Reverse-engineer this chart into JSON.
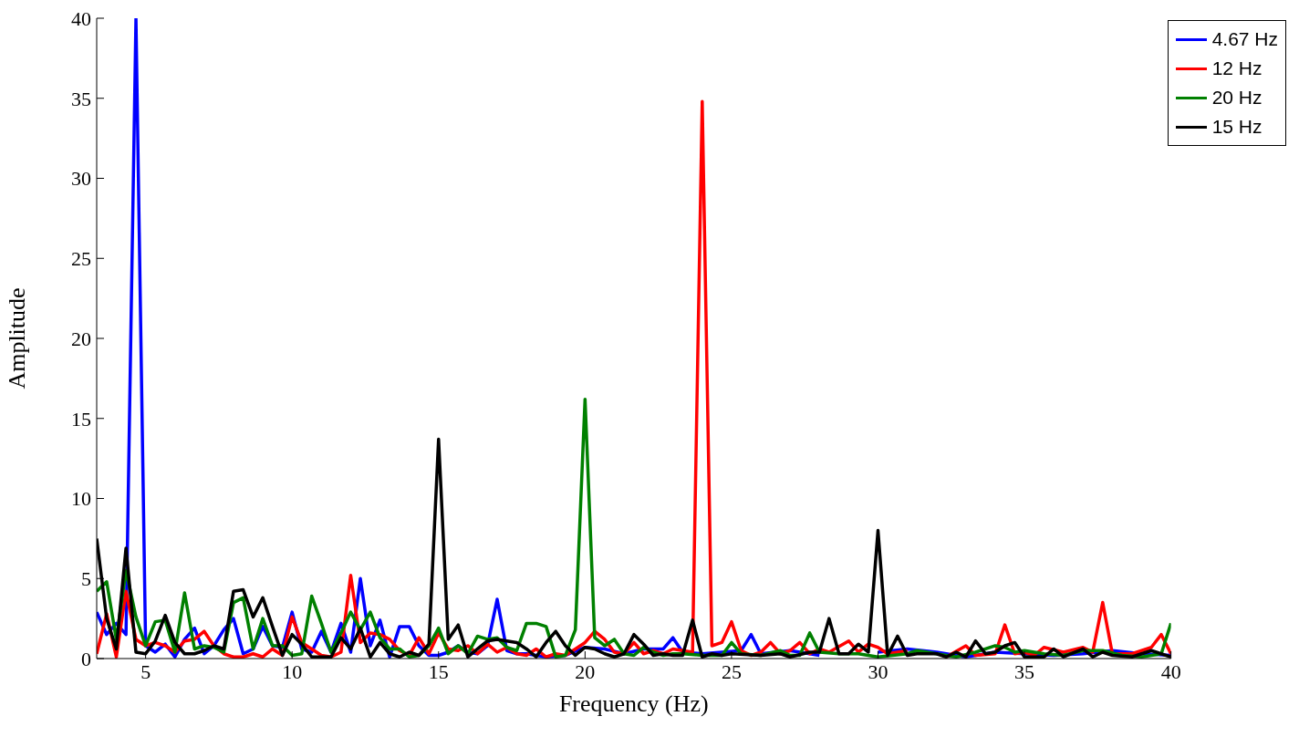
{
  "chart_data": {
    "type": "line",
    "xlabel": "Frequency (Hz)",
    "ylabel": "Amplitude",
    "xlim": [
      3.33,
      40
    ],
    "ylim": [
      0,
      40
    ],
    "xticks": [
      5,
      10,
      15,
      20,
      25,
      30,
      35,
      40
    ],
    "yticks": [
      0,
      5,
      10,
      15,
      20,
      25,
      30,
      35,
      40
    ],
    "grid": false,
    "legend": "top right",
    "marker": "none",
    "line_style": "solid",
    "series": [
      {
        "name": "4.67 Hz",
        "color": "#0000ff",
        "x": [
          3.33,
          3.67,
          4.0,
          4.33,
          4.67,
          5.0,
          5.33,
          5.67,
          6.0,
          6.33,
          6.67,
          7.0,
          7.33,
          7.67,
          8.0,
          8.33,
          8.67,
          9.0,
          9.33,
          9.67,
          10.0,
          10.33,
          10.67,
          11.0,
          11.33,
          11.67,
          12.0,
          12.33,
          12.67,
          13.0,
          13.33,
          13.67,
          14.0,
          14.33,
          14.67,
          15.0,
          15.33,
          15.67,
          16.0,
          16.33,
          16.67,
          17.0,
          17.33,
          17.67,
          18.0,
          18.67,
          19.33,
          20.0,
          20.67,
          21.33,
          22.0,
          22.67,
          23.0,
          23.33,
          24.0,
          24.67,
          25.33,
          25.67,
          26.0,
          27,
          28,
          29,
          30,
          31,
          32,
          33,
          34,
          35,
          36,
          37,
          38,
          39,
          40
        ],
        "values": [
          2.9,
          1.5,
          2.2,
          1.5,
          40,
          0.8,
          0.4,
          0.9,
          0.1,
          1.2,
          1.9,
          0.3,
          0.8,
          1.8,
          2.5,
          0.3,
          0.6,
          2.0,
          0.8,
          0.7,
          2.9,
          0.6,
          0.4,
          1.7,
          0.4,
          2.2,
          0.4,
          5.0,
          0.8,
          2.4,
          0.1,
          2.0,
          2.0,
          0.8,
          0.2,
          0.2,
          0.4,
          0.8,
          0.4,
          0.3,
          0.8,
          3.7,
          0.5,
          0.3,
          0.3,
          0.1,
          0.2,
          0.7,
          0.6,
          0.3,
          0.6,
          0.6,
          1.3,
          0.4,
          0.3,
          0.4,
          0.5,
          1.5,
          0.3,
          0.5,
          0.2,
          null,
          0.4,
          0.6,
          0.4,
          0.1,
          0.4,
          0.3,
          0.2,
          0.3,
          0.5,
          0.3,
          0.2
        ]
      },
      {
        "name": "12 Hz",
        "color": "#ff0000",
        "x": [
          3.33,
          3.67,
          4.0,
          4.33,
          4.67,
          5.0,
          5.33,
          5.67,
          6.0,
          6.33,
          6.67,
          7.0,
          7.33,
          7.67,
          8.0,
          8.33,
          8.67,
          9.0,
          9.33,
          9.67,
          10.0,
          10.33,
          10.67,
          11.0,
          11.33,
          11.67,
          12.0,
          12.33,
          12.67,
          13.0,
          13.33,
          13.67,
          14.0,
          14.33,
          14.67,
          15.0,
          15.33,
          15.67,
          16.0,
          16.33,
          16.67,
          17.0,
          17.33,
          17.67,
          18.0,
          18.33,
          18.67,
          19.0,
          19.33,
          19.67,
          20.0,
          20.33,
          20.67,
          21.0,
          21.33,
          21.67,
          22.0,
          22.33,
          22.67,
          23.0,
          23.33,
          23.67,
          24.0,
          24.33,
          24.67,
          25.0,
          25.33,
          25.67,
          26.0,
          26.33,
          26.67,
          27.0,
          27.33,
          27.67,
          28.0,
          28.33,
          29.0,
          29.33,
          29.67,
          30.0,
          30.33,
          31,
          31.67,
          32.33,
          33.0,
          33.33,
          34.0,
          34.33,
          34.67,
          35,
          35.33,
          35.67,
          36.33,
          37.0,
          37.33,
          37.67,
          38.0,
          38.67,
          39.33,
          39.67,
          40
        ],
        "values": [
          0.3,
          2.8,
          0.1,
          4.2,
          1.2,
          0.8,
          1.0,
          0.8,
          0.4,
          1.1,
          1.2,
          1.7,
          0.8,
          0.3,
          0.1,
          0.1,
          0.3,
          0.1,
          0.6,
          0.2,
          2.6,
          1.0,
          0.6,
          0.2,
          0.1,
          0.4,
          5.2,
          1.0,
          1.6,
          1.5,
          1.2,
          0.5,
          0.2,
          1.3,
          0.3,
          1.6,
          0.6,
          0.5,
          0.8,
          0.3,
          0.9,
          0.4,
          0.7,
          0.3,
          0.2,
          0.6,
          0.1,
          0.3,
          0.2,
          0.6,
          1.0,
          1.7,
          1.2,
          0.4,
          0.3,
          1.0,
          0.3,
          0.5,
          0.3,
          0.6,
          0.5,
          0.4,
          34.8,
          0.8,
          1.0,
          2.3,
          0.5,
          0.2,
          0.4,
          1.0,
          0.3,
          0.5,
          1.0,
          0.3,
          0.6,
          0.4,
          1.1,
          0.4,
          0.9,
          0.7,
          0.3,
          0.5,
          null,
          0.1,
          0.8,
          0.2,
          0.3,
          2.1,
          0.3,
          0.4,
          0.2,
          0.7,
          0.4,
          0.7,
          0.4,
          3.5,
          0.3,
          0.3,
          0.7,
          1.5,
          0.3
        ]
      },
      {
        "name": "20 Hz",
        "color": "#008000",
        "x": [
          3.33,
          3.67,
          4.0,
          4.33,
          4.67,
          5.0,
          5.33,
          5.67,
          6.0,
          6.33,
          6.67,
          7.0,
          7.33,
          7.67,
          8.0,
          8.33,
          8.67,
          9.0,
          9.33,
          9.67,
          10.0,
          10.33,
          10.67,
          11.0,
          11.33,
          11.67,
          12.0,
          12.33,
          12.67,
          13.0,
          13.33,
          13.67,
          14.0,
          14.33,
          14.67,
          15.0,
          15.33,
          15.67,
          16.0,
          16.33,
          16.67,
          17.0,
          17.33,
          17.67,
          18.0,
          18.33,
          18.67,
          19.0,
          19.33,
          19.67,
          20.0,
          20.33,
          20.67,
          21.0,
          21.33,
          21.67,
          22.0,
          22.33,
          22.67,
          23.0,
          23.33,
          24,
          24.67,
          25.0,
          25.33,
          26,
          26.67,
          27.0,
          27.33,
          27.67,
          28.0,
          28.67,
          29.33,
          30,
          31,
          31.33,
          32,
          32.67,
          33.33,
          34.0,
          34.33,
          34.67,
          35.0,
          35.67,
          36.33,
          37.0,
          37.67,
          38.33,
          39.0,
          39.67,
          40
        ],
        "values": [
          4.2,
          4.8,
          1.2,
          5.5,
          2.6,
          0.8,
          2.3,
          2.4,
          0.4,
          4.1,
          0.6,
          0.8,
          0.7,
          0.4,
          3.5,
          3.8,
          0.6,
          2.5,
          0.8,
          0.8,
          0.2,
          0.3,
          3.9,
          2.2,
          0.4,
          1.6,
          2.9,
          1.8,
          2.9,
          1.3,
          0.6,
          0.6,
          0.1,
          0.2,
          0.8,
          1.9,
          0.3,
          0.8,
          0.3,
          1.4,
          1.2,
          1.3,
          0.7,
          0.5,
          2.2,
          2.2,
          2.0,
          0.1,
          0.2,
          1.8,
          16.2,
          1.3,
          0.8,
          1.2,
          0.3,
          0.2,
          0.7,
          0.4,
          0.2,
          0.3,
          0.3,
          0.2,
          0.2,
          1.0,
          0.3,
          0.2,
          0.5,
          0.2,
          0.2,
          1.6,
          0.4,
          0.3,
          0.3,
          0.1,
          0.3,
          0.5,
          0.3,
          0.1,
          0.4,
          0.8,
          0.7,
          0.4,
          0.5,
          0.3,
          0.2,
          0.5,
          0.5,
          0.2,
          0.1,
          0.3,
          2.2
        ]
      },
      {
        "name": "15 Hz",
        "color": "#000000",
        "x": [
          3.33,
          3.67,
          4.0,
          4.33,
          4.67,
          5.0,
          5.33,
          5.67,
          6.0,
          6.33,
          6.67,
          7.0,
          7.33,
          7.67,
          8.0,
          8.33,
          8.67,
          9.0,
          9.33,
          9.67,
          10.0,
          10.33,
          10.67,
          11.0,
          11.33,
          11.67,
          12.0,
          12.33,
          12.67,
          13.0,
          13.33,
          13.67,
          14.0,
          14.33,
          14.67,
          15.0,
          15.33,
          15.67,
          16.0,
          16.33,
          16.67,
          17.0,
          17.33,
          17.67,
          18.0,
          18.33,
          18.67,
          19.0,
          19.33,
          19.67,
          20.0,
          20.33,
          20.67,
          21.0,
          21.33,
          21.67,
          22.0,
          22.33,
          22.67,
          23.0,
          23.33,
          23.67,
          24.0,
          24.33,
          24.67,
          25,
          26,
          26.67,
          27,
          27.67,
          28.0,
          28.33,
          28.67,
          29.0,
          29.33,
          29.67,
          30.0,
          30.33,
          30.67,
          31.0,
          31.33,
          31.67,
          32.0,
          32.33,
          32.67,
          33.0,
          33.33,
          33.67,
          34.0,
          34.33,
          34.67,
          35.0,
          35.33,
          35.67,
          36.0,
          36.33,
          37.0,
          37.33,
          37.67,
          38.0,
          38.67,
          39.33,
          40
        ],
        "values": [
          7.5,
          2.5,
          0.6,
          6.9,
          0.4,
          0.3,
          1.1,
          2.7,
          1.0,
          0.3,
          0.3,
          0.5,
          0.8,
          0.6,
          4.2,
          4.3,
          2.6,
          3.8,
          2.0,
          0.2,
          1.5,
          0.9,
          0.1,
          0.1,
          0.1,
          1.3,
          0.6,
          1.9,
          0.1,
          1.0,
          0.3,
          0.1,
          0.4,
          0.2,
          0.9,
          13.7,
          1.2,
          2.1,
          0.1,
          0.6,
          1.1,
          1.2,
          1.1,
          1.0,
          0.6,
          0.1,
          1.0,
          1.7,
          0.8,
          0.2,
          0.7,
          0.6,
          0.3,
          0.1,
          0.3,
          1.5,
          0.9,
          0.2,
          0.3,
          0.2,
          0.2,
          2.4,
          0.1,
          0.3,
          0.2,
          0.3,
          0.2,
          0.3,
          0.1,
          0.4,
          0.4,
          2.5,
          0.3,
          0.3,
          0.9,
          0.4,
          8.0,
          0.2,
          1.4,
          0.2,
          0.3,
          0.3,
          0.3,
          0.1,
          0.4,
          0.1,
          1.1,
          0.3,
          0.4,
          0.8,
          1.0,
          0.1,
          0.1,
          0.1,
          0.6,
          0.1,
          0.6,
          0.1,
          0.4,
          0.2,
          0.1,
          0.5,
          0.1
        ]
      }
    ]
  }
}
